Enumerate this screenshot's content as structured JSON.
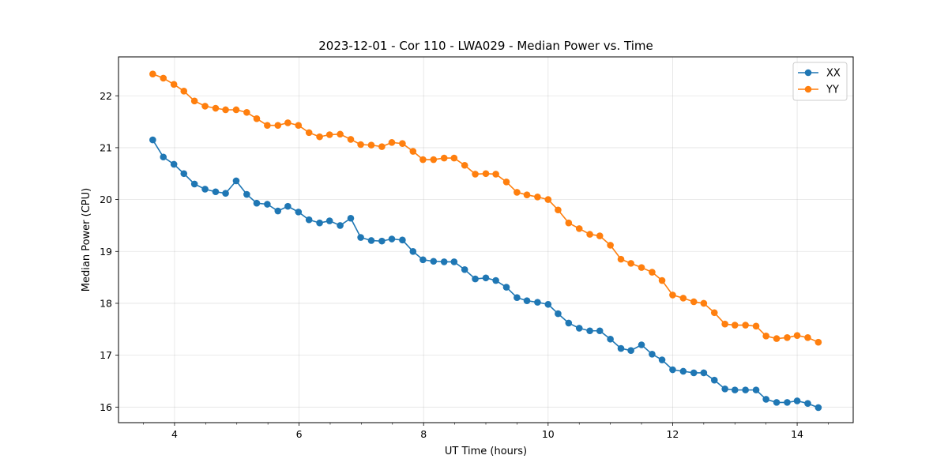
{
  "chart_data": {
    "type": "line",
    "title": "2023-12-01 - Cor 110 - LWA029 - Median Power vs. Time",
    "xlabel": "UT Time (hours)",
    "ylabel": "Median Power (CPU)",
    "xlim": [
      3.1,
      14.9
    ],
    "ylim": [
      15.7,
      22.75
    ],
    "xticks": [
      4,
      6,
      8,
      10,
      12,
      14
    ],
    "yticks": [
      16,
      17,
      18,
      19,
      20,
      21,
      22
    ],
    "grid": true,
    "legend_position": "top-right",
    "x": [
      3.65,
      3.82,
      3.99,
      4.15,
      4.32,
      4.49,
      4.66,
      4.82,
      4.99,
      5.16,
      5.32,
      5.49,
      5.66,
      5.82,
      5.99,
      6.16,
      6.33,
      6.49,
      6.66,
      6.83,
      6.99,
      7.16,
      7.33,
      7.49,
      7.66,
      7.83,
      7.99,
      8.16,
      8.33,
      8.49,
      8.66,
      8.83,
      9.0,
      9.16,
      9.33,
      9.5,
      9.66,
      9.83,
      10.0,
      10.16,
      10.33,
      10.5,
      10.67,
      10.83,
      11.0,
      11.17,
      11.33,
      11.5,
      11.67,
      11.83,
      12.0,
      12.17,
      12.34,
      12.5,
      12.67,
      12.84,
      13.0,
      13.17,
      13.34,
      13.5,
      13.67,
      13.84,
      14.0,
      14.17,
      14.34
    ],
    "series": [
      {
        "name": "XX",
        "color": "#1f77b4",
        "values": [
          21.15,
          20.82,
          20.68,
          20.5,
          20.3,
          20.2,
          20.15,
          20.12,
          20.36,
          20.1,
          19.93,
          19.91,
          19.78,
          19.87,
          19.76,
          19.61,
          19.55,
          19.59,
          19.5,
          19.64,
          19.27,
          19.21,
          19.2,
          19.24,
          19.22,
          19.0,
          18.84,
          18.81,
          18.8,
          18.8,
          18.65,
          18.47,
          18.49,
          18.44,
          18.31,
          18.11,
          18.05,
          18.02,
          17.98,
          17.8,
          17.62,
          17.52,
          17.47,
          17.47,
          17.31,
          17.13,
          17.09,
          17.2,
          17.02,
          16.91,
          16.72,
          16.69,
          16.66,
          16.66,
          16.52,
          16.35,
          16.33,
          16.33,
          16.33,
          16.15,
          16.09,
          16.09,
          16.12,
          16.07,
          15.99
        ]
      },
      {
        "name": "YY",
        "color": "#ff7f0e",
        "values": [
          22.42,
          22.34,
          22.22,
          22.09,
          21.9,
          21.8,
          21.76,
          21.73,
          21.73,
          21.68,
          21.56,
          21.43,
          21.43,
          21.48,
          21.43,
          21.29,
          21.21,
          21.25,
          21.26,
          21.16,
          21.06,
          21.05,
          21.02,
          21.1,
          21.08,
          20.93,
          20.77,
          20.77,
          20.8,
          20.8,
          20.66,
          20.49,
          20.5,
          20.49,
          20.34,
          20.14,
          20.09,
          20.05,
          20.0,
          19.8,
          19.55,
          19.44,
          19.33,
          19.3,
          19.12,
          18.85,
          18.77,
          18.69,
          18.6,
          18.44,
          18.16,
          18.1,
          18.03,
          18.0,
          17.82,
          17.6,
          17.58,
          17.58,
          17.56,
          17.37,
          17.32,
          17.34,
          17.38,
          17.34,
          17.25
        ]
      }
    ]
  }
}
